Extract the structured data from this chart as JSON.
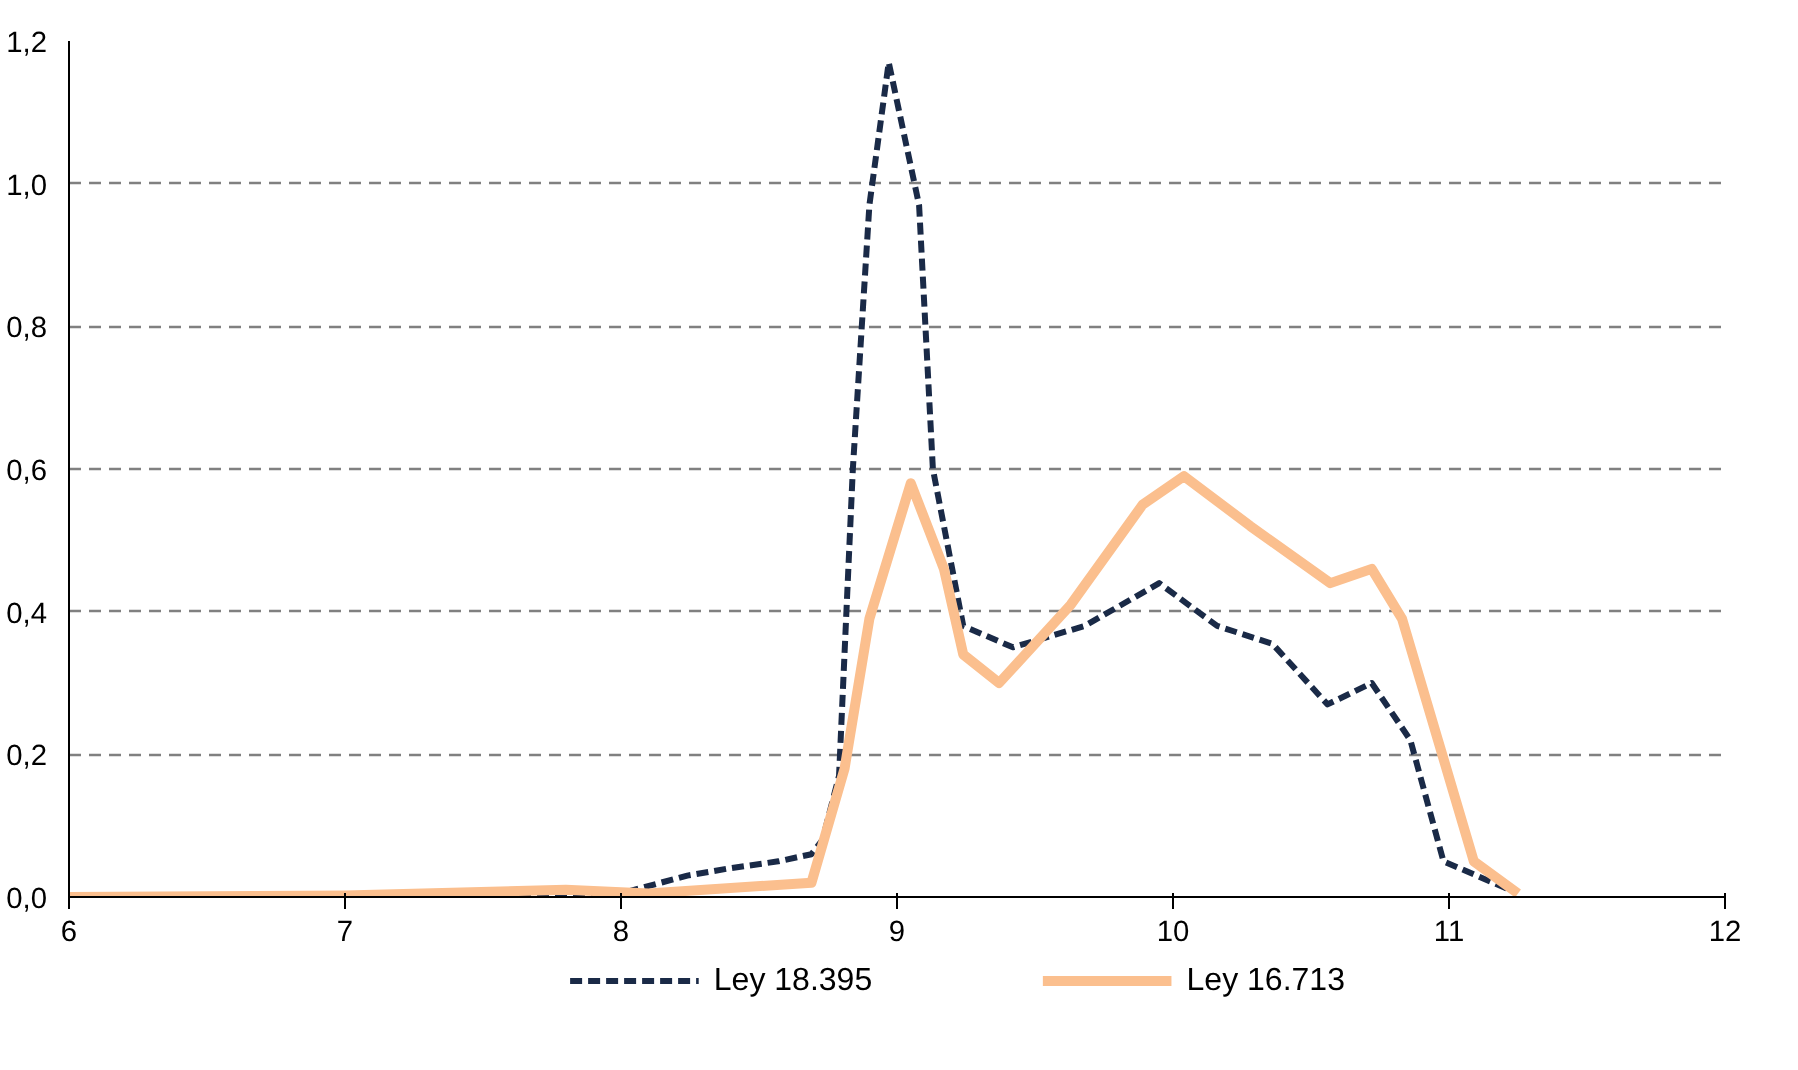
{
  "chart_data": {
    "type": "line",
    "xlim": [
      6,
      12
    ],
    "ylim": [
      0,
      1.2
    ],
    "xticks": [
      6,
      7,
      8,
      9,
      10,
      11,
      12
    ],
    "yticks": [
      {
        "value": 0,
        "label": "0,0"
      },
      {
        "value": 0.2,
        "label": "0,2"
      },
      {
        "value": 0.4,
        "label": "0,4"
      },
      {
        "value": 0.6,
        "label": "0,6"
      },
      {
        "value": 0.8,
        "label": "0,8"
      },
      {
        "value": 1.0,
        "label": "1,0"
      },
      {
        "value": 1.2,
        "label": "1,2"
      }
    ],
    "grid": "y",
    "legend": "bottom",
    "marker": "none",
    "series": [
      {
        "name": "Ley 18.395",
        "color": "#1a2a47",
        "line_style": "dashed",
        "x": [
          6,
          7,
          8.0,
          8.24,
          8.39,
          8.57,
          8.69,
          8.73,
          8.79,
          8.84,
          8.9,
          8.97,
          9.08,
          9.13,
          9.24,
          9.42,
          9.68,
          9.95,
          10.16,
          10.36,
          10.56,
          10.72,
          10.86,
          10.98,
          11.22
        ],
        "values": [
          0,
          0.002,
          0.005,
          0.03,
          0.04,
          0.05,
          0.06,
          0.08,
          0.17,
          0.6,
          0.97,
          1.17,
          0.97,
          0.6,
          0.38,
          0.35,
          0.38,
          0.44,
          0.38,
          0.355,
          0.27,
          0.3,
          0.22,
          0.05,
          0.01
        ]
      },
      {
        "name": "Ley 16.713",
        "color": "#fbbf8e",
        "line_style": "solid",
        "x": [
          6,
          7,
          7.8,
          8.1,
          8.69,
          8.81,
          8.9,
          9.05,
          9.17,
          9.24,
          9.37,
          9.63,
          9.89,
          10.04,
          10.28,
          10.57,
          10.72,
          10.83,
          10.96,
          11.09,
          11.25
        ],
        "values": [
          0,
          0.002,
          0.01,
          0.005,
          0.02,
          0.18,
          0.39,
          0.58,
          0.46,
          0.34,
          0.3,
          0.41,
          0.55,
          0.59,
          0.52,
          0.44,
          0.46,
          0.39,
          0.22,
          0.05,
          0.005
        ]
      }
    ]
  }
}
